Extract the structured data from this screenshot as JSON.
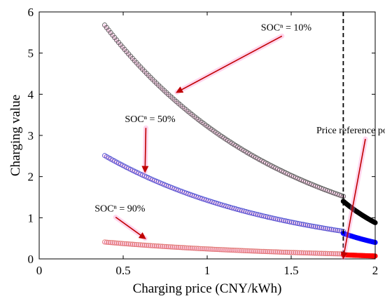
{
  "chart_data": {
    "type": "scatter",
    "xlabel": "Charging price (CNY/kWh)",
    "ylabel": "Charging value",
    "xlim": [
      0,
      2
    ],
    "ylim": [
      0,
      6
    ],
    "xticks": [
      0,
      0.5,
      1,
      1.5,
      2
    ],
    "xtick_labels": [
      "0",
      "0.5",
      "1",
      "1.5",
      "2"
    ],
    "yticks": [
      0,
      1,
      2,
      3,
      4,
      5,
      6
    ],
    "ytick_labels": [
      "0",
      "1",
      "2",
      "3",
      "4",
      "5",
      "6"
    ],
    "grid": false,
    "reference_x": 1.81,
    "series": [
      {
        "name": "SOCⁿ = 10%",
        "color": "#555555",
        "dark_color": "#000000",
        "x_start": 0.39,
        "x_ref": 1.81,
        "x_end": 2.0,
        "y_start": 5.68,
        "y_ref": 1.52,
        "y_after_ref": 1.4,
        "y_end": 0.88
      },
      {
        "name": "SOCⁿ = 50%",
        "color": "#4a4ad0",
        "dark_color": "#0000ff",
        "x_start": 0.39,
        "x_ref": 1.81,
        "x_end": 2.0,
        "y_start": 2.51,
        "y_ref": 0.67,
        "y_after_ref": 0.62,
        "y_end": 0.4
      },
      {
        "name": "SOCⁿ = 90%",
        "color": "#e07070",
        "dark_color": "#ff0000",
        "x_start": 0.39,
        "x_ref": 1.81,
        "x_end": 2.0,
        "y_start": 0.41,
        "y_ref": 0.12,
        "y_after_ref": 0.1,
        "y_end": 0.07
      }
    ],
    "annotations": [
      {
        "label": "SOCⁿ = 10%",
        "text_x": 1.32,
        "text_y": 5.55,
        "arrow_to_x": 0.82,
        "arrow_to_y": 4.05
      },
      {
        "label": "SOCⁿ = 50%",
        "text_x": 0.51,
        "text_y": 3.32,
        "arrow_to_x": 0.63,
        "arrow_to_y": 2.12
      },
      {
        "label": "SOCⁿ = 90%",
        "text_x": 0.33,
        "text_y": 1.15,
        "arrow_to_x": 0.63,
        "arrow_to_y": 0.5
      },
      {
        "label": "Price reference point",
        "text_x": 1.65,
        "text_y": 3.05,
        "arrow_to_x": 1.81,
        "arrow_to_y": 0.03
      }
    ],
    "highlight_color": "#ff88cc",
    "arrow_color": "#c00000"
  }
}
